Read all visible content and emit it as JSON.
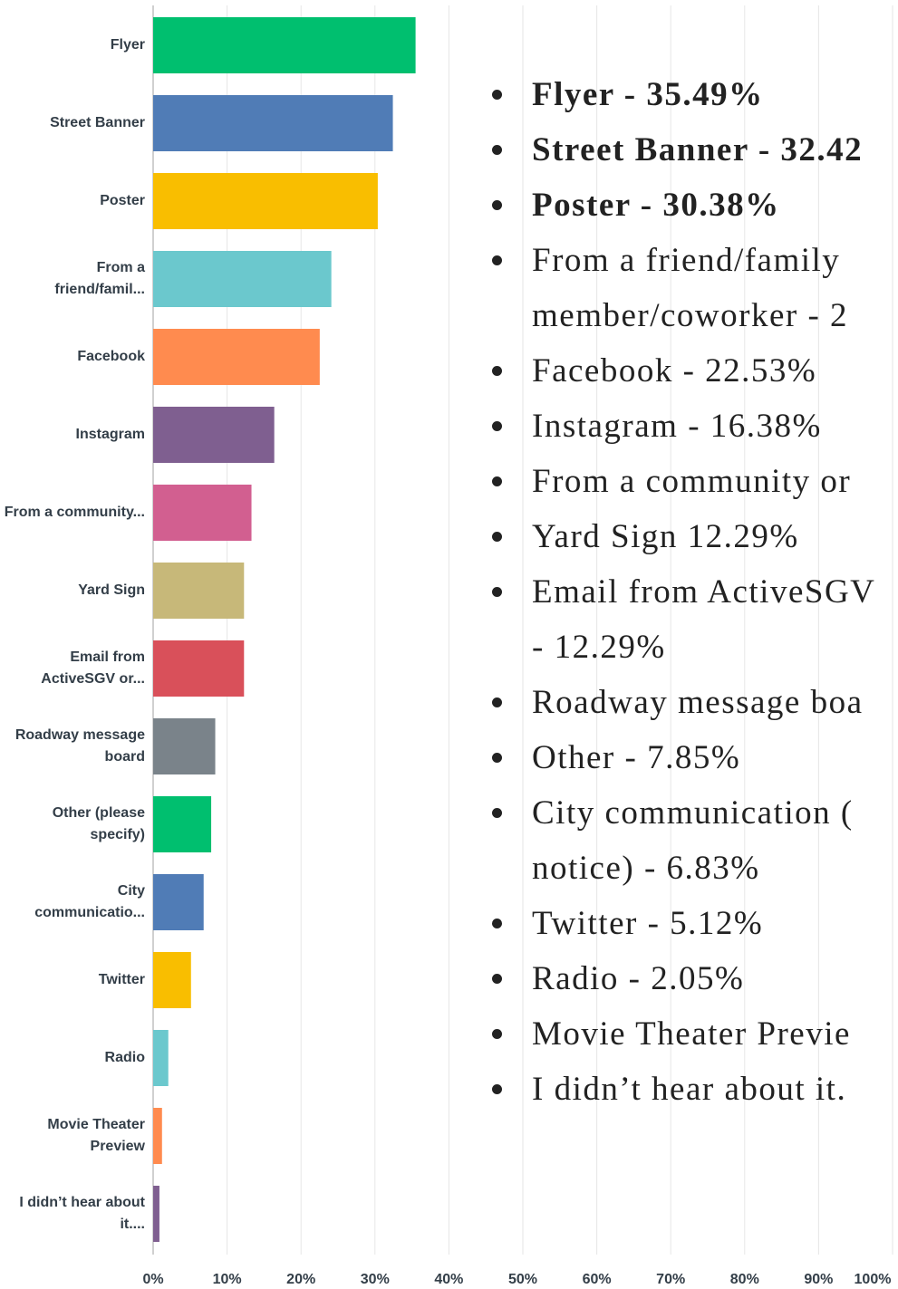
{
  "chart_data": {
    "type": "barh",
    "categories": [
      "Flyer",
      "Street Banner",
      "Poster",
      "From a friend/famil...",
      "Facebook",
      "Instagram",
      "From a community...",
      "Yard Sign",
      "Email from ActiveSGV or...",
      "Roadway message board",
      "Other (please specify)",
      "City communicatio...",
      "Twitter",
      "Radio",
      "Movie Theater Preview",
      "I didn’t hear about it...."
    ],
    "values": [
      35.49,
      32.42,
      30.38,
      24.1,
      22.53,
      16.38,
      13.3,
      12.29,
      12.29,
      8.4,
      7.85,
      6.83,
      5.12,
      2.05,
      1.2,
      0.85
    ],
    "colors": [
      "#00bf6f",
      "#507cb6",
      "#f9be00",
      "#6bc8cd",
      "#ff8b4f",
      "#7f5f90",
      "#d25f90",
      "#c7b879",
      "#d9505a",
      "#7a838a",
      "#00bf6f",
      "#507cb6",
      "#f9be00",
      "#6bc8cd",
      "#ff8b4f",
      "#7f5f90"
    ],
    "xlim": [
      0,
      100
    ],
    "xticks": [
      {
        "value": 0,
        "label": "0%"
      },
      {
        "value": 10,
        "label": "10%"
      },
      {
        "value": 20,
        "label": "20%"
      },
      {
        "value": 30,
        "label": "30%"
      },
      {
        "value": 40,
        "label": "40%"
      },
      {
        "value": 50,
        "label": "50%"
      },
      {
        "value": 60,
        "label": "60%"
      },
      {
        "value": 70,
        "label": "70%"
      },
      {
        "value": 80,
        "label": "80%"
      },
      {
        "value": 90,
        "label": "90%"
      },
      {
        "value": 100,
        "label": "100%"
      }
    ],
    "grid": true
  },
  "list": [
    {
      "bold": true,
      "lines": [
        "Flyer - 35.49%"
      ]
    },
    {
      "bold": true,
      "lines": [
        "Street Banner - 32.42"
      ]
    },
    {
      "bold": true,
      "lines": [
        "Poster - 30.38%"
      ]
    },
    {
      "bold": false,
      "lines": [
        "From a friend/family",
        "member/coworker - 2"
      ]
    },
    {
      "bold": false,
      "lines": [
        "Facebook - 22.53%"
      ]
    },
    {
      "bold": false,
      "lines": [
        "Instagram - 16.38%"
      ]
    },
    {
      "bold": false,
      "lines": [
        "From a community or"
      ]
    },
    {
      "bold": false,
      "lines": [
        "Yard Sign 12.29%"
      ]
    },
    {
      "bold": false,
      "lines": [
        "Email from ActiveSGV",
        "- 12.29%"
      ]
    },
    {
      "bold": false,
      "lines": [
        "Roadway message boa"
      ]
    },
    {
      "bold": false,
      "lines": [
        "Other - 7.85%"
      ]
    },
    {
      "bold": false,
      "lines": [
        "City communication (",
        "notice) - 6.83%"
      ]
    },
    {
      "bold": false,
      "lines": [
        "Twitter - 5.12%"
      ]
    },
    {
      "bold": false,
      "lines": [
        "Radio - 2.05%"
      ]
    },
    {
      "bold": false,
      "lines": [
        "Movie Theater Previe"
      ]
    },
    {
      "bold": false,
      "lines": [
        "I didn’t hear about it."
      ]
    }
  ]
}
